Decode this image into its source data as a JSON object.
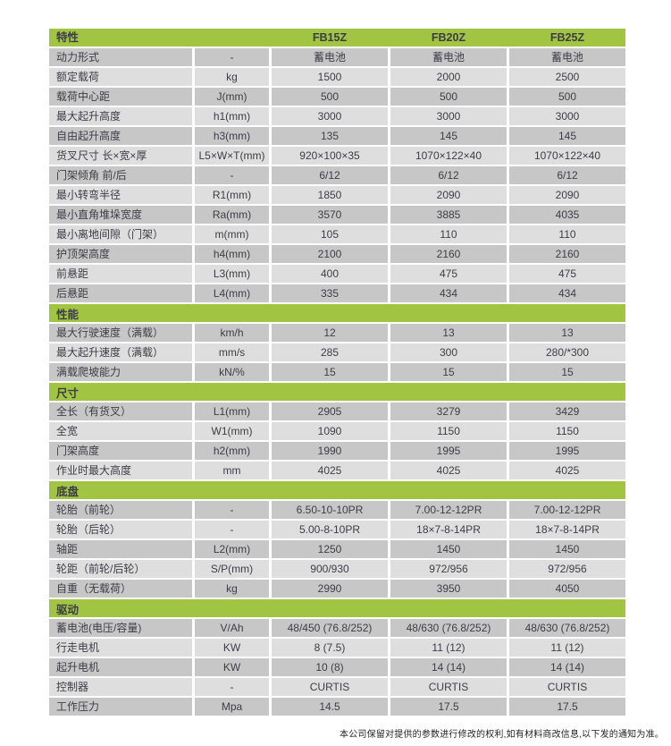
{
  "colors": {
    "accent_green": "#a2c443",
    "row_dark": "#c7c7c7",
    "row_light": "#dedede",
    "text_dark": "#3d3d47",
    "footer_text": "#1f1f1f"
  },
  "table": {
    "header": {
      "feature_label": "特性",
      "unit_label": "",
      "models": [
        "FB15Z",
        "FB20Z",
        "FB25Z"
      ]
    },
    "rows": [
      {
        "type": "data",
        "label": "动力形式",
        "unit": "-",
        "values": [
          "蓄电池",
          "蓄电池",
          "蓄电池"
        ]
      },
      {
        "type": "data",
        "label": "额定载荷",
        "unit": "kg",
        "values": [
          "1500",
          "2000",
          "2500"
        ]
      },
      {
        "type": "data",
        "label": "载荷中心距",
        "unit": "J(mm)",
        "values": [
          "500",
          "500",
          "500"
        ]
      },
      {
        "type": "data",
        "label": "最大起升高度",
        "unit": "h1(mm)",
        "values": [
          "3000",
          "3000",
          "3000"
        ]
      },
      {
        "type": "data",
        "label": "自由起升高度",
        "unit": "h3(mm)",
        "values": [
          "135",
          "145",
          "145"
        ]
      },
      {
        "type": "data",
        "label": "货叉尺寸 长×宽×厚",
        "unit": "L5×W×T(mm)",
        "values": [
          "920×100×35",
          "1070×122×40",
          "1070×122×40"
        ]
      },
      {
        "type": "data",
        "label": "门架倾角 前/后",
        "unit": "-",
        "values": [
          "6/12",
          "6/12",
          "6/12"
        ]
      },
      {
        "type": "data",
        "label": "最小转弯半径",
        "unit": "R1(mm)",
        "values": [
          "1850",
          "2090",
          "2090"
        ]
      },
      {
        "type": "data",
        "label": "最小直角堆垛宽度",
        "unit": "Ra(mm)",
        "values": [
          "3570",
          "3885",
          "4035"
        ]
      },
      {
        "type": "data",
        "label": "最小离地间隙（门架）",
        "unit": "m(mm)",
        "values": [
          "105",
          "110",
          "110"
        ]
      },
      {
        "type": "data",
        "label": "护顶架高度",
        "unit": "h4(mm)",
        "values": [
          "2100",
          "2160",
          "2160"
        ]
      },
      {
        "type": "data",
        "label": "前悬距",
        "unit": "L3(mm)",
        "values": [
          "400",
          "475",
          "475"
        ]
      },
      {
        "type": "data",
        "label": "后悬距",
        "unit": "L4(mm)",
        "values": [
          "335",
          "434",
          "434"
        ]
      },
      {
        "type": "section",
        "label": "性能"
      },
      {
        "type": "data",
        "label": "最大行驶速度（满载）",
        "unit": "km/h",
        "values": [
          "12",
          "13",
          "13"
        ]
      },
      {
        "type": "data",
        "label": "最大起升速度（满载）",
        "unit": "mm/s",
        "values": [
          "285",
          "300",
          "280/*300"
        ]
      },
      {
        "type": "data",
        "label": "满载爬坡能力",
        "unit": "kN/%",
        "values": [
          "15",
          "15",
          "15"
        ]
      },
      {
        "type": "section",
        "label": "尺寸"
      },
      {
        "type": "data",
        "label": "全长（有货叉）",
        "unit": "L1(mm)",
        "values": [
          "2905",
          "3279",
          "3429"
        ]
      },
      {
        "type": "data",
        "label": "全宽",
        "unit": "W1(mm)",
        "values": [
          "1090",
          "1150",
          "1150"
        ]
      },
      {
        "type": "data",
        "label": "门架高度",
        "unit": "h2(mm)",
        "values": [
          "1990",
          "1995",
          "1995"
        ]
      },
      {
        "type": "data",
        "label": "作业时最大高度",
        "unit": "mm",
        "values": [
          "4025",
          "4025",
          "4025"
        ]
      },
      {
        "type": "section",
        "label": "底盘"
      },
      {
        "type": "data",
        "label": "轮胎（前轮）",
        "unit": "-",
        "values": [
          "6.50-10-10PR",
          "7.00-12-12PR",
          "7.00-12-12PR"
        ]
      },
      {
        "type": "data",
        "label": "轮胎（后轮）",
        "unit": "-",
        "values": [
          "5.00-8-10PR",
          "18×7-8-14PR",
          "18×7-8-14PR"
        ]
      },
      {
        "type": "data",
        "label": "轴距",
        "unit": "L2(mm)",
        "values": [
          "1250",
          "1450",
          "1450"
        ]
      },
      {
        "type": "data",
        "label": "轮距（前轮/后轮）",
        "unit": "S/P(mm)",
        "values": [
          "900/930",
          "972/956",
          "972/956"
        ]
      },
      {
        "type": "data",
        "label": "自重（无载荷）",
        "unit": "kg",
        "values": [
          "2990",
          "3950",
          "4050"
        ]
      },
      {
        "type": "section",
        "label": "驱动"
      },
      {
        "type": "data",
        "label": "蓄电池(电压/容量)",
        "unit": "V/Ah",
        "values": [
          "48/450 (76.8/252)",
          "48/630 (76.8/252)",
          "48/630 (76.8/252)"
        ]
      },
      {
        "type": "data",
        "label": "行走电机",
        "unit": "KW",
        "values": [
          "8 (7.5)",
          "11 (12)",
          "11 (12)"
        ]
      },
      {
        "type": "data",
        "label": "起升电机",
        "unit": "KW",
        "values": [
          "10 (8)",
          "14 (14)",
          "14 (14)"
        ]
      },
      {
        "type": "data",
        "label": "控制器",
        "unit": "-",
        "values": [
          "CURTIS",
          "CURTIS",
          "CURTIS"
        ]
      },
      {
        "type": "data",
        "label": "工作压力",
        "unit": "Mpa",
        "values": [
          "14.5",
          "17.5",
          "17.5"
        ]
      }
    ]
  },
  "footer": {
    "note": "本公司保留对提供的参数进行修改的权利,如有材料商改信息,以下发的通知为准。"
  }
}
